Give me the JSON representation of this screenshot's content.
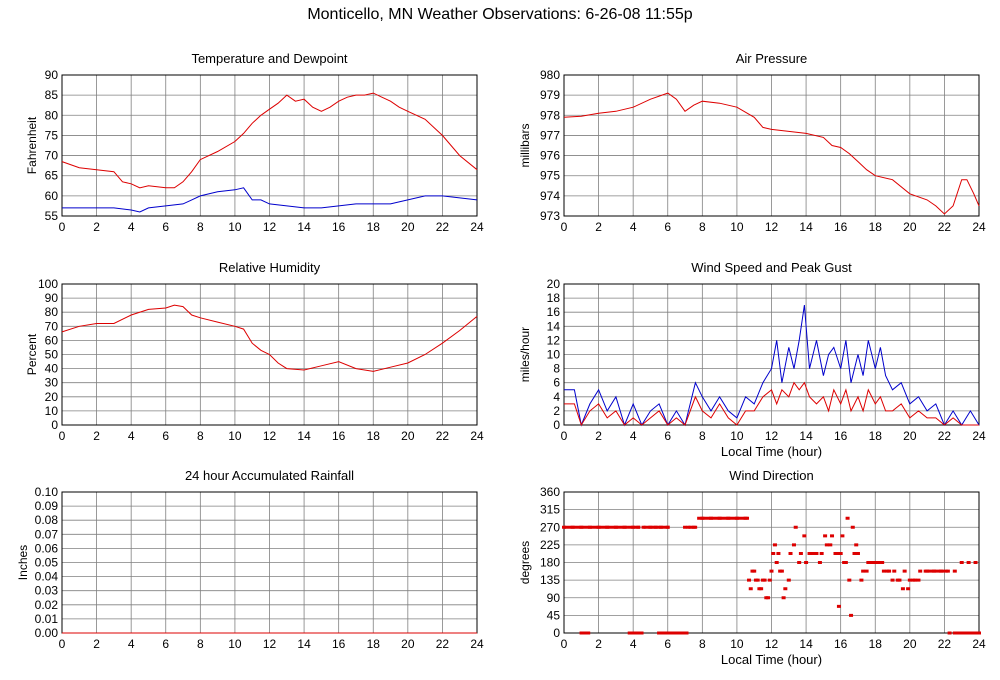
{
  "page_title": "Monticello, MN Weather Observations: 6-26-08 11:55p",
  "chart_data": [
    {
      "id": "temp",
      "type": "line",
      "title": "Temperature and Dewpoint",
      "xlabel": "",
      "ylabel": "Fahrenheit",
      "xlim": [
        0,
        24
      ],
      "ylim": [
        55,
        90
      ],
      "xticks": [
        0,
        2,
        4,
        6,
        8,
        10,
        12,
        14,
        16,
        18,
        20,
        22,
        24
      ],
      "yticks": [
        55,
        60,
        65,
        70,
        75,
        80,
        85,
        90
      ],
      "grid": true,
      "series": [
        {
          "color": "#dd0000",
          "x": [
            0,
            1,
            2,
            3,
            3.5,
            4,
            4.5,
            5,
            6,
            6.5,
            7,
            7.5,
            8,
            9,
            10,
            10.5,
            11,
            11.5,
            12,
            12.5,
            13,
            13.5,
            14,
            14.5,
            15,
            15.5,
            16,
            16.5,
            17,
            17.5,
            18,
            18.5,
            19,
            19.5,
            20,
            21,
            22,
            23,
            24
          ],
          "y": [
            68.5,
            67,
            66.5,
            66,
            63.5,
            63,
            62,
            62.5,
            62,
            62,
            63.5,
            66,
            69,
            71,
            73.5,
            75.5,
            78,
            80,
            81.5,
            83,
            85,
            83.5,
            84,
            82,
            81,
            82,
            83.5,
            84.5,
            85,
            85,
            85.5,
            84.5,
            83.5,
            82,
            81,
            79,
            75,
            70,
            66.5
          ]
        },
        {
          "color": "#0000cc",
          "x": [
            0,
            1,
            2,
            3,
            4,
            4.5,
            5,
            6,
            7,
            7.5,
            8,
            9,
            10,
            10.5,
            11,
            11.5,
            12,
            13,
            14,
            15,
            16,
            17,
            18,
            19,
            20,
            21,
            22,
            23,
            24
          ],
          "y": [
            57,
            57,
            57,
            57,
            56.5,
            56,
            57,
            57.5,
            58,
            59,
            60,
            61,
            61.5,
            62,
            59,
            59,
            58,
            57.5,
            57,
            57,
            57.5,
            58,
            58,
            58,
            59,
            60,
            60,
            59.5,
            59
          ]
        }
      ]
    },
    {
      "id": "pressure",
      "type": "line",
      "title": "Air Pressure",
      "xlabel": "",
      "ylabel": "millibars",
      "xlim": [
        0,
        24
      ],
      "ylim": [
        973,
        980
      ],
      "xticks": [
        0,
        2,
        4,
        6,
        8,
        10,
        12,
        14,
        16,
        18,
        20,
        22,
        24
      ],
      "yticks": [
        973,
        974,
        975,
        976,
        977,
        978,
        979,
        980
      ],
      "grid": true,
      "series": [
        {
          "color": "#dd0000",
          "x": [
            0,
            1,
            2,
            3,
            4,
            5,
            6,
            6.5,
            7,
            7.5,
            8,
            9,
            10,
            11,
            11.5,
            12,
            13,
            14,
            15,
            15.5,
            16,
            16.5,
            17,
            17.5,
            18,
            19,
            20,
            21,
            21.5,
            22,
            22.5,
            23,
            23.3,
            23.7,
            24
          ],
          "y": [
            977.9,
            977.95,
            978.1,
            978.2,
            978.4,
            978.8,
            979.1,
            978.8,
            978.2,
            978.5,
            978.7,
            978.6,
            978.4,
            977.9,
            977.4,
            977.3,
            977.2,
            977.1,
            976.9,
            976.5,
            976.4,
            976.1,
            975.7,
            975.3,
            975,
            974.8,
            974.1,
            973.8,
            973.5,
            973.1,
            973.5,
            974.8,
            974.8,
            974.1,
            973.5
          ]
        }
      ]
    },
    {
      "id": "humidity",
      "type": "line",
      "title": "Relative Humidity",
      "xlabel": "",
      "ylabel": "Percent",
      "xlim": [
        0,
        24
      ],
      "ylim": [
        0,
        100
      ],
      "xticks": [
        0,
        2,
        4,
        6,
        8,
        10,
        12,
        14,
        16,
        18,
        20,
        22,
        24
      ],
      "yticks": [
        0,
        10,
        20,
        30,
        40,
        50,
        60,
        70,
        80,
        90,
        100
      ],
      "grid": true,
      "series": [
        {
          "color": "#dd0000",
          "x": [
            0,
            1,
            2,
            3,
            4,
            5,
            6,
            6.5,
            7,
            7.5,
            8,
            9,
            10,
            10.5,
            11,
            11.5,
            12,
            12.5,
            13,
            14,
            15,
            16,
            17,
            18,
            19,
            20,
            21,
            22,
            23,
            24
          ],
          "y": [
            66,
            70,
            72,
            72,
            78,
            82,
            83,
            85,
            84,
            78,
            76,
            73,
            70,
            68,
            58,
            53,
            50,
            44,
            40,
            39,
            42,
            45,
            40,
            38,
            41,
            44,
            50,
            58,
            67,
            77
          ]
        }
      ]
    },
    {
      "id": "wind",
      "type": "line",
      "title": "Wind Speed and Peak Gust",
      "xlabel": "Local Time (hour)",
      "ylabel": "miles/hour",
      "xlim": [
        0,
        24
      ],
      "ylim": [
        0,
        20
      ],
      "xticks": [
        0,
        2,
        4,
        6,
        8,
        10,
        12,
        14,
        16,
        18,
        20,
        22,
        24
      ],
      "yticks": [
        0,
        2,
        4,
        6,
        8,
        10,
        12,
        14,
        16,
        18,
        20
      ],
      "grid": true,
      "series": [
        {
          "color": "#0000cc",
          "x": [
            0,
            0.6,
            1,
            1.5,
            2,
            2.5,
            3,
            3.5,
            4,
            4.5,
            5,
            5.5,
            6,
            6.5,
            7,
            7.3,
            7.6,
            8,
            8.5,
            9,
            9.5,
            10,
            10.5,
            11,
            11.5,
            12,
            12.3,
            12.6,
            13,
            13.3,
            13.6,
            13.9,
            14.2,
            14.6,
            15,
            15.3,
            15.6,
            16,
            16.3,
            16.6,
            17,
            17.3,
            17.6,
            18,
            18.3,
            18.6,
            19,
            19.5,
            20,
            20.5,
            21,
            21.5,
            22,
            22.5,
            23,
            23.5,
            24
          ],
          "y": [
            5,
            5,
            0,
            3,
            5,
            2,
            4,
            0,
            3,
            0,
            2,
            3,
            0,
            2,
            0,
            3,
            6,
            4,
            2,
            4,
            2,
            1,
            4,
            3,
            6,
            8,
            12,
            6,
            11,
            8,
            12,
            17,
            8,
            12,
            7,
            10,
            11,
            8,
            12,
            6,
            10,
            7,
            12,
            8,
            11,
            7,
            5,
            6,
            3,
            4,
            2,
            3,
            0,
            2,
            0,
            2,
            0
          ]
        },
        {
          "color": "#dd0000",
          "x": [
            0,
            0.6,
            1,
            1.5,
            2,
            2.5,
            3,
            3.5,
            4,
            4.5,
            5,
            5.5,
            6,
            6.5,
            7,
            7.3,
            7.6,
            8,
            8.5,
            9,
            9.5,
            10,
            10.5,
            11,
            11.5,
            12,
            12.3,
            12.6,
            13,
            13.3,
            13.6,
            13.9,
            14.2,
            14.6,
            15,
            15.3,
            15.6,
            16,
            16.3,
            16.6,
            17,
            17.3,
            17.6,
            18,
            18.3,
            18.6,
            19,
            19.5,
            20,
            20.5,
            21,
            21.5,
            22,
            22.5,
            23,
            23.5,
            24
          ],
          "y": [
            3,
            3,
            0,
            2,
            3,
            1,
            2,
            0,
            1,
            0,
            1,
            2,
            0,
            1,
            0,
            2,
            4,
            2,
            1,
            3,
            1,
            0,
            2,
            2,
            4,
            5,
            3,
            5,
            4,
            6,
            5,
            6,
            4,
            3,
            4,
            2,
            5,
            3,
            5,
            2,
            4,
            2,
            5,
            3,
            4,
            2,
            2,
            3,
            1,
            2,
            1,
            1,
            0,
            1,
            0,
            0,
            0
          ]
        }
      ]
    },
    {
      "id": "rain",
      "type": "line",
      "title": "24 hour Accumulated Rainfall",
      "xlabel": "",
      "ylabel": "Inches",
      "xlim": [
        0,
        24
      ],
      "ylim": [
        0,
        0.1
      ],
      "xticks": [
        0,
        2,
        4,
        6,
        8,
        10,
        12,
        14,
        16,
        18,
        20,
        22,
        24
      ],
      "yticks": [
        "0.00",
        "0.01",
        "0.02",
        "0.03",
        "0.04",
        "0.05",
        "0.06",
        "0.07",
        "0.08",
        "0.09",
        "0.10"
      ],
      "grid": true,
      "series": [
        {
          "color": "#dd0000",
          "x": [
            0,
            24
          ],
          "y": [
            0,
            0
          ]
        }
      ]
    },
    {
      "id": "winddir",
      "type": "scatter",
      "title": "Wind Direction",
      "xlabel": "Local Time (hour)",
      "ylabel": "degrees",
      "xlim": [
        0,
        24
      ],
      "ylim": [
        0,
        360
      ],
      "xticks": [
        0,
        2,
        4,
        6,
        8,
        10,
        12,
        14,
        16,
        18,
        20,
        22,
        24
      ],
      "yticks": [
        0,
        45,
        90,
        135,
        180,
        225,
        270,
        315,
        360
      ],
      "grid": true,
      "series": [
        {
          "color": "#dd0000",
          "x": [
            0,
            0.5,
            1,
            1.5,
            2,
            2.5,
            3,
            3.5,
            4,
            4.3,
            4.6,
            5,
            5.3,
            5.6,
            6,
            7,
            7.2,
            7.5,
            8,
            8.5,
            9,
            9.5,
            10,
            10.5,
            1.2,
            1.4,
            3.8,
            4.0,
            4.3,
            5.5,
            5.8,
            6.0,
            6.3,
            6.6,
            6.9,
            7.0,
            10.7,
            10.9,
            11.1,
            11.3,
            11.5,
            11.7,
            11.9,
            12.1,
            12.3,
            12.5,
            12.8,
            13.1,
            13.4,
            13.7,
            14.0,
            14.3,
            14.6,
            14.9,
            15.2,
            15.5,
            15.8,
            16.1,
            16.4,
            16.7,
            17.0,
            17.3,
            17.6,
            17.9,
            18.2,
            18.5,
            18.8,
            19.1,
            19.4,
            19.7,
            20.0,
            20.3,
            20.6,
            21.0,
            21.4,
            21.8,
            22.2,
            22.6,
            23.0,
            23.4,
            23.8,
            10.8,
            11.2,
            11.6,
            12.0,
            12.4,
            12.7,
            13.3,
            13.9,
            14.5,
            15.1,
            15.7,
            16.0,
            16.3,
            16.9,
            17.5,
            18.1,
            18.7,
            19.3,
            19.9,
            20.5,
            11.0,
            11.4,
            11.8,
            12.2,
            12.6,
            13.0,
            13.6,
            14.2,
            14.8,
            15.4,
            16.2,
            16.5,
            16.8,
            17.2,
            17.8,
            18.4,
            19.0,
            19.6,
            20.2,
            15.9,
            16.6,
            22.3,
            22.6,
            23.0,
            23.6,
            24.0
          ],
          "y": [
            270,
            270,
            270,
            270,
            270,
            270,
            270,
            270,
            270,
            270,
            270,
            270,
            270,
            270,
            270,
            270,
            270,
            270,
            293,
            293,
            293,
            293,
            293,
            293,
            0,
            0,
            0,
            0,
            0,
            0,
            0,
            0,
            0,
            0,
            0,
            0,
            135,
            158,
            135,
            113,
            135,
            90,
            135,
            203,
            180,
            158,
            113,
            203,
            270,
            203,
            180,
            203,
            203,
            203,
            225,
            248,
            203,
            248,
            293,
            270,
            203,
            158,
            180,
            180,
            180,
            158,
            158,
            158,
            135,
            158,
            135,
            135,
            158,
            158,
            158,
            158,
            158,
            158,
            180,
            180,
            180,
            113,
            135,
            135,
            158,
            203,
            90,
            225,
            248,
            203,
            248,
            203,
            203,
            180,
            225,
            158,
            180,
            158,
            135,
            113,
            135,
            158,
            113,
            90,
            225,
            158,
            135,
            180,
            203,
            180,
            225,
            180,
            135,
            203,
            135,
            180,
            180,
            135,
            113,
            135,
            68,
            45,
            0,
            0,
            0,
            0,
            0
          ]
        }
      ]
    }
  ]
}
